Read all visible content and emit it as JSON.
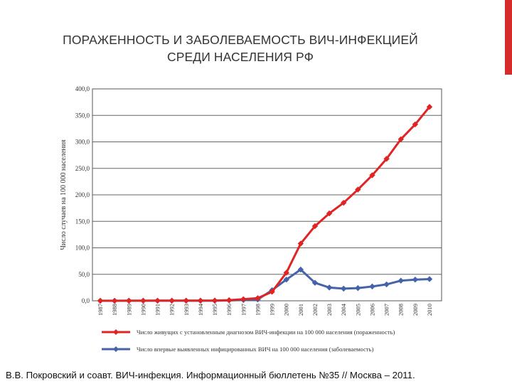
{
  "slide": {
    "title_line1": "ПОРАЖЕННОСТЬ И ЗАБОЛЕВАЕМОСТЬ ВИЧ-ИНФЕКЦИЕЙ",
    "title_line2": "СРЕДИ НАСЕЛЕНИЯ РФ",
    "footer": "В.В. Покровский и соавт. ВИЧ-инфекция. Информационный бюллетень №35 // Москва – 2011.",
    "accent_color": "#d62b2b"
  },
  "chart_data": {
    "type": "line",
    "ylabel": "Число случаев на 100 000 населения",
    "ylim": [
      0,
      400
    ],
    "ytick_labels": [
      "0,0",
      "50,0",
      "100,0",
      "150,0",
      "200,0",
      "250,0",
      "300,0",
      "350,0",
      "400,0"
    ],
    "x": [
      "1987",
      "1988",
      "1989",
      "1990",
      "1991",
      "1992",
      "1993",
      "1994",
      "1995",
      "1996",
      "1997",
      "1998",
      "1999",
      "2000",
      "2001",
      "2002",
      "2003",
      "2004",
      "2005",
      "2006",
      "2007",
      "2008",
      "2009",
      "2010"
    ],
    "grid": true,
    "legend_position": "bottom",
    "series": [
      {
        "name": "Число живущих с установленным диагнозом ВИЧ-инфекции на 100 000 населения (пораженность)",
        "color": "#e02323",
        "marker": "diamond",
        "values": [
          0.1,
          0.1,
          0.2,
          0.2,
          0.3,
          0.3,
          0.4,
          0.4,
          0.5,
          1.2,
          3.0,
          5.0,
          17.0,
          53.0,
          108.0,
          141.0,
          165.0,
          185.0,
          210.0,
          237.0,
          268.0,
          305.0,
          333.0,
          366.0
        ]
      },
      {
        "name": "Число впервые выявленных инфицированных ВИЧ на 100 000 населения (заболеваемость)",
        "color": "#4463a8",
        "marker": "diamond",
        "values": [
          0.0,
          0.0,
          0.1,
          0.1,
          0.1,
          0.1,
          0.1,
          0.1,
          0.1,
          0.7,
          1.5,
          2.5,
          20.0,
          40.0,
          59.0,
          34.0,
          25.0,
          23.0,
          24.0,
          27.0,
          31.0,
          38.0,
          40.0,
          41.0
        ]
      }
    ]
  }
}
